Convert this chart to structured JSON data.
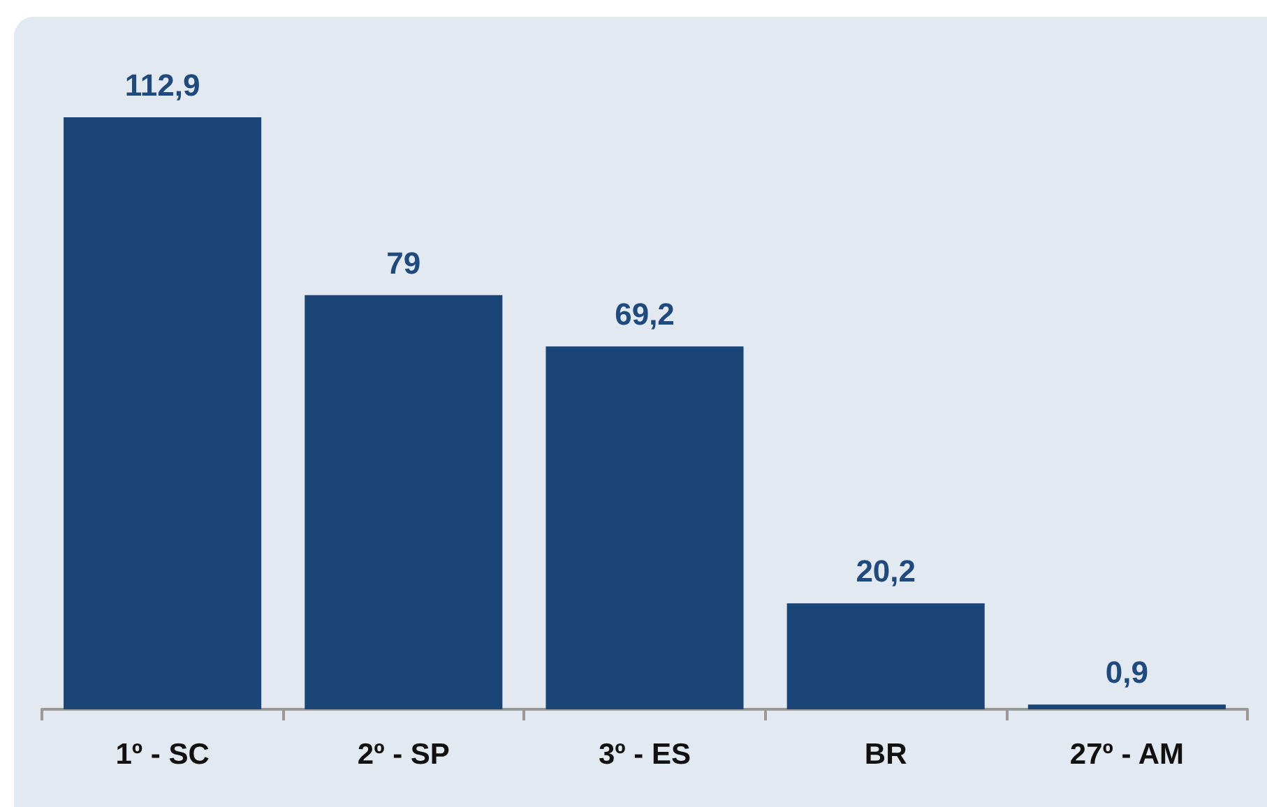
{
  "chart_data": {
    "type": "bar",
    "categories": [
      "1º - SC",
      "2º - SP",
      "3º - ES",
      "BR",
      "27º - AM"
    ],
    "values": [
      112.9,
      79,
      69.2,
      20.2,
      0.9
    ],
    "value_labels": [
      "112,9",
      "79",
      "69,2",
      "20,2",
      "0,9"
    ],
    "color": "#1b4577"
  }
}
